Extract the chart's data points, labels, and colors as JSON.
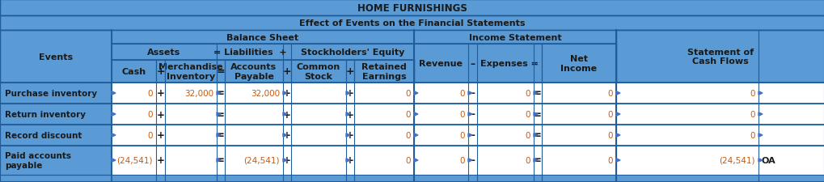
{
  "title1": "HOME FURNISHINGS",
  "title2": "Effect of Events on the Financial Statements",
  "header_bg": "#5B9BD5",
  "border_color": "#1F5C99",
  "border_color_light": "#4472C4",
  "white": "#FFFFFF",
  "orange": "#C55A11",
  "black": "#1A1A1A",
  "arrow_color": "#4472C4",
  "rows": [
    {
      "event": "Purchase inventory",
      "cash": "0",
      "merch": "32,000",
      "ap": "32,000",
      "cs": "",
      "re": "0",
      "rev": "0",
      "exp": "0",
      "ni": "0",
      "scf": "0",
      "oa": ""
    },
    {
      "event": "Return inventory",
      "cash": "0",
      "merch": "",
      "ap": "",
      "cs": "",
      "re": "0",
      "rev": "0",
      "exp": "0",
      "ni": "0",
      "scf": "0",
      "oa": ""
    },
    {
      "event": "Record discount",
      "cash": "0",
      "merch": "",
      "ap": "",
      "cs": "",
      "re": "0",
      "rev": "0",
      "exp": "0",
      "ni": "0",
      "scf": "0",
      "oa": ""
    },
    {
      "event": "Paid accounts\npayable",
      "cash": "(24,541)",
      "merch": "",
      "ap": "(24,541)",
      "cs": "",
      "re": "0",
      "rev": "0",
      "exp": "0",
      "ni": "0",
      "scf": "(24,541)",
      "oa": "OA"
    }
  ]
}
